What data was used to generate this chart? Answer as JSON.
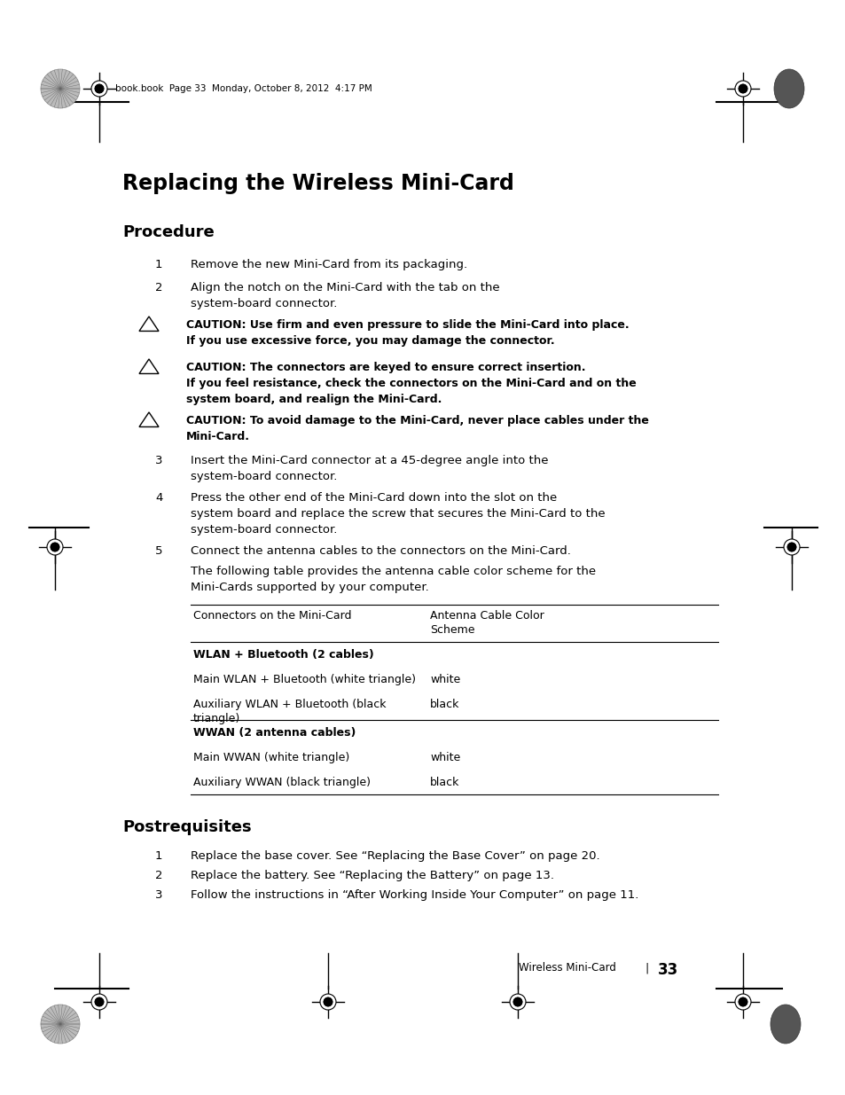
{
  "bg_color": "#ffffff",
  "header_text": "book.book  Page 33  Monday, October 8, 2012  4:17 PM",
  "title": "Replacing the Wireless Mini-Card",
  "section1": "Procedure",
  "section2": "Postrequisites",
  "proc_steps": [
    {
      "num": "1",
      "text": "Remove the new Mini-Card from its packaging."
    },
    {
      "num": "2",
      "text": "Align the notch on the Mini-Card with the tab on the\nsystem-board connector."
    }
  ],
  "cautions": [
    {
      "line1": "CAUTION: Use firm and even pressure to slide the Mini-Card into place.",
      "line2": "If you use excessive force, you may damage the connector.",
      "line3": ""
    },
    {
      "line1": "CAUTION: The connectors are keyed to ensure correct insertion.",
      "line2": "If you feel resistance, check the connectors on the Mini-Card and on the",
      "line3": "system board, and realign the Mini-Card."
    },
    {
      "line1": "CAUTION: To avoid damage to the Mini-Card, never place cables under the",
      "line2": "Mini-Card.",
      "line3": ""
    }
  ],
  "proc_steps2": [
    {
      "num": "3",
      "text": "Insert the Mini-Card connector at a 45-degree angle into the\nsystem-board connector."
    },
    {
      "num": "4",
      "text": "Press the other end of the Mini-Card down into the slot on the\nsystem board and replace the screw that secures the Mini-Card to the\nsystem-board connector."
    },
    {
      "num": "5",
      "text": "Connect the antenna cables to the connectors on the Mini-Card."
    }
  ],
  "table_intro_line1": "The following table provides the antenna cable color scheme for the",
  "table_intro_line2": "Mini-Cards supported by your computer.",
  "table_col1_header": "Connectors on the Mini-Card",
  "table_col2_header_line1": "Antenna Cable Color",
  "table_col2_header_line2": "Scheme",
  "table_rows": [
    {
      "bold": true,
      "col1": "WLAN + Bluetooth (2 cables)",
      "col2": "",
      "wrap": false
    },
    {
      "bold": false,
      "col1": "Main WLAN + Bluetooth (white triangle)",
      "col2": "white",
      "wrap": false
    },
    {
      "bold": false,
      "col1": "Auxiliary WLAN + Bluetooth (black",
      "col1b": "triangle)",
      "col2": "black",
      "wrap": true
    },
    {
      "bold": true,
      "col1": "WWAN (2 antenna cables)",
      "col2": "",
      "wrap": false
    },
    {
      "bold": false,
      "col1": "Main WWAN (white triangle)",
      "col2": "white",
      "wrap": false
    },
    {
      "bold": false,
      "col1": "Auxiliary WWAN (black triangle)",
      "col2": "black",
      "wrap": false
    }
  ],
  "post_steps": [
    {
      "num": "1",
      "text": "Replace the base cover. See “Replacing the Base Cover” on page 20."
    },
    {
      "num": "2",
      "text": "Replace the battery. See “Replacing the Battery” on page 13."
    },
    {
      "num": "3",
      "text": "Follow the instructions in “After Working Inside Your Computer” on page 11."
    }
  ],
  "footer_text": "Wireless Mini-Card",
  "footer_sep": "|",
  "footer_num": "33"
}
